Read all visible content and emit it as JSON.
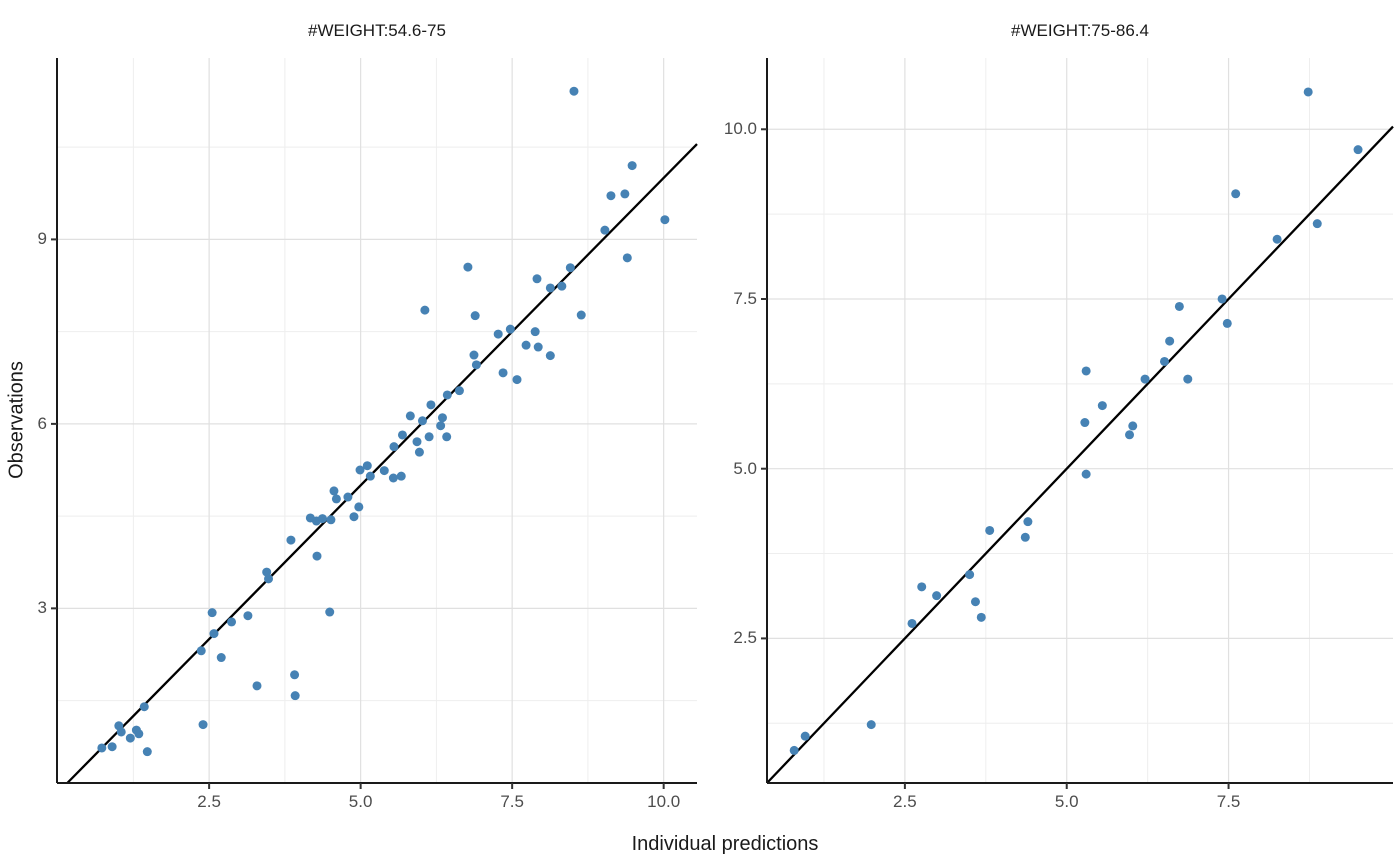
{
  "axes": {
    "x_title": "Individual predictions",
    "y_title": "Observations"
  },
  "style": {
    "point_color": "#4682B4",
    "identity_line_color": "#000000",
    "grid_major_color": "#E0E0E0",
    "grid_minor_color": "#EEEEEE",
    "axis_line_color": "#1A1A1A",
    "tick_mark_color": "#333333",
    "tick_label_color": "#4D4D4D",
    "background_color": "#FFFFFF"
  },
  "chart_data": [
    {
      "type": "scatter",
      "facet": "#WEIGHT:54.6-75",
      "xlabel": "Individual predictions",
      "ylabel": "Observations",
      "xlim": [
        -0.01,
        10.55
      ],
      "ylim": [
        0.16,
        11.95
      ],
      "x_ticks": [
        2.5,
        5,
        7.5,
        10
      ],
      "x_tick_labels": [
        "2.5",
        "5.0",
        "7.5",
        "10.0"
      ],
      "x_minor_ticks": [
        1.25,
        3.75,
        6.25,
        8.75
      ],
      "y_ticks": [
        3,
        6,
        9
      ],
      "y_tick_labels": [
        "3",
        "6",
        "9"
      ],
      "y_minor_ticks": [
        1.5,
        4.5,
        7.5,
        10.5
      ],
      "grid": true,
      "legend": "none",
      "identity_line": true,
      "points": [
        [
          8.52,
          11.41
        ],
        [
          9.48,
          10.2
        ],
        [
          9.13,
          9.71
        ],
        [
          9.36,
          9.74
        ],
        [
          10.02,
          9.32
        ],
        [
          9.03,
          9.15
        ],
        [
          9.4,
          8.7
        ],
        [
          6.77,
          8.55
        ],
        [
          8.46,
          8.54
        ],
        [
          7.91,
          8.36
        ],
        [
          8.13,
          8.21
        ],
        [
          8.32,
          8.24
        ],
        [
          6.06,
          7.85
        ],
        [
          6.89,
          7.76
        ],
        [
          8.64,
          7.77
        ],
        [
          7.27,
          7.46
        ],
        [
          7.47,
          7.54
        ],
        [
          7.88,
          7.5
        ],
        [
          7.73,
          7.28
        ],
        [
          7.93,
          7.25
        ],
        [
          6.87,
          7.12
        ],
        [
          6.91,
          6.96
        ],
        [
          8.13,
          7.11
        ],
        [
          7.35,
          6.83
        ],
        [
          7.58,
          6.72
        ],
        [
          6.43,
          6.47
        ],
        [
          6.63,
          6.54
        ],
        [
          6.16,
          6.31
        ],
        [
          6.35,
          6.1
        ],
        [
          5.82,
          6.13
        ],
        [
          6.02,
          6.05
        ],
        [
          5.69,
          5.82
        ],
        [
          6.32,
          5.97
        ],
        [
          6.13,
          5.79
        ],
        [
          6.42,
          5.79
        ],
        [
          5.93,
          5.71
        ],
        [
          5.97,
          5.54
        ],
        [
          5.55,
          5.63
        ],
        [
          5.39,
          5.24
        ],
        [
          5.54,
          5.12
        ],
        [
          5.67,
          5.15
        ],
        [
          0.73,
          0.73
        ],
        [
          0.9,
          0.75
        ],
        [
          1.01,
          1.09
        ],
        [
          1.05,
          0.99
        ],
        [
          1.2,
          0.89
        ],
        [
          1.3,
          1.02
        ],
        [
          1.34,
          0.96
        ],
        [
          1.43,
          1.4
        ],
        [
          1.48,
          0.67
        ],
        [
          2.4,
          1.11
        ],
        [
          2.55,
          2.93
        ],
        [
          2.37,
          2.31
        ],
        [
          2.7,
          2.2
        ],
        [
          2.58,
          2.59
        ],
        [
          2.87,
          2.78
        ],
        [
          3.14,
          2.88
        ],
        [
          3.29,
          1.74
        ],
        [
          3.45,
          3.59
        ],
        [
          3.48,
          3.48
        ],
        [
          3.91,
          1.92
        ],
        [
          3.92,
          1.58
        ],
        [
          4.49,
          2.94
        ],
        [
          3.85,
          4.11
        ],
        [
          4.28,
          3.85
        ],
        [
          4.51,
          4.44
        ],
        [
          4.56,
          4.91
        ],
        [
          4.6,
          4.78
        ],
        [
          4.79,
          4.81
        ],
        [
          4.97,
          4.65
        ],
        [
          4.89,
          4.49
        ],
        [
          4.17,
          4.47
        ],
        [
          4.27,
          4.42
        ],
        [
          4.37,
          4.46
        ],
        [
          4.99,
          5.25
        ],
        [
          5.11,
          5.32
        ],
        [
          5.16,
          5.15
        ]
      ]
    },
    {
      "type": "scatter",
      "facet": "#WEIGHT:75-86.4",
      "xlabel": "Individual predictions",
      "ylabel": "Observations",
      "xlim": [
        0.37,
        10.04
      ],
      "ylim": [
        0.37,
        11.05
      ],
      "x_ticks": [
        2.5,
        5,
        7.5
      ],
      "x_tick_labels": [
        "2.5",
        "5.0",
        "7.5"
      ],
      "x_minor_ticks": [
        1.25,
        3.75,
        6.25,
        8.75
      ],
      "y_ticks": [
        2.5,
        5,
        7.5,
        10
      ],
      "y_tick_labels": [
        "2.5",
        "5.0",
        "7.5",
        "10.0"
      ],
      "y_minor_ticks": [
        1.25,
        3.75,
        6.25,
        8.75
      ],
      "grid": true,
      "legend": "none",
      "identity_line": true,
      "points": [
        [
          8.73,
          10.55
        ],
        [
          9.5,
          9.7
        ],
        [
          7.61,
          9.05
        ],
        [
          8.87,
          8.61
        ],
        [
          8.25,
          8.38
        ],
        [
          7.4,
          7.5
        ],
        [
          6.74,
          7.39
        ],
        [
          7.48,
          7.14
        ],
        [
          6.59,
          6.88
        ],
        [
          6.51,
          6.58
        ],
        [
          5.3,
          6.44
        ],
        [
          6.21,
          6.32
        ],
        [
          6.87,
          6.32
        ],
        [
          5.55,
          5.93
        ],
        [
          5.28,
          5.68
        ],
        [
          6.02,
          5.63
        ],
        [
          5.97,
          5.5
        ],
        [
          5.3,
          4.92
        ],
        [
          3.81,
          4.09
        ],
        [
          4.4,
          4.22
        ],
        [
          4.36,
          3.99
        ],
        [
          3.5,
          3.44
        ],
        [
          2.76,
          3.26
        ],
        [
          2.99,
          3.13
        ],
        [
          3.59,
          3.04
        ],
        [
          3.68,
          2.81
        ],
        [
          2.61,
          2.72
        ],
        [
          1.98,
          1.23
        ],
        [
          0.96,
          1.06
        ],
        [
          0.79,
          0.85
        ]
      ]
    }
  ]
}
